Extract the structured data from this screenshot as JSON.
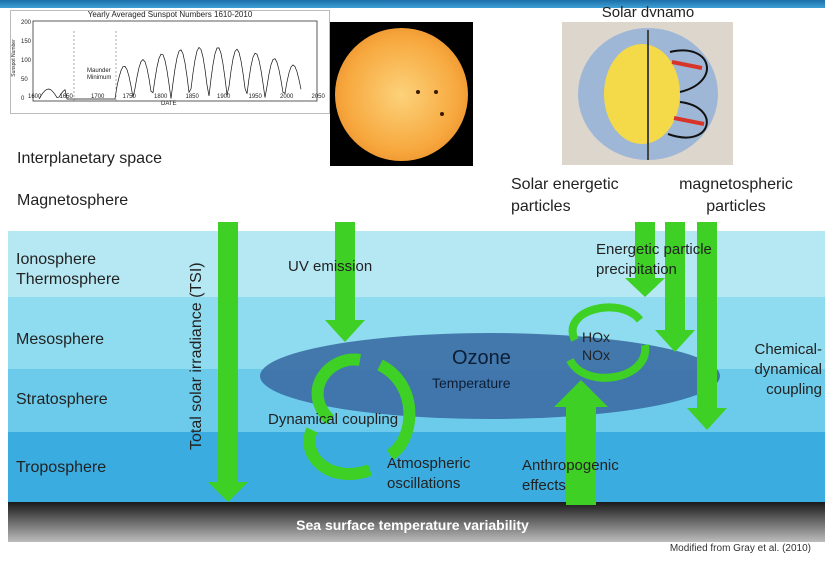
{
  "title_top": "Solar dynamo",
  "inset_chart": {
    "title": "Yearly Averaged Sunspot Numbers 1610-2010",
    "ylabel": "Sunspot Number",
    "xlabel": "DATE",
    "annotation": "Maunder Minimum",
    "x_ticks": [
      "1600",
      "1650",
      "1700",
      "1750",
      "1800",
      "1850",
      "1900",
      "1950",
      "2000",
      "2050"
    ],
    "y_ticks": [
      "0",
      "50",
      "100",
      "150",
      "200"
    ]
  },
  "space_labels": {
    "interplanetary": "Interplanetary space",
    "magnetosphere": "Magnetosphere",
    "solar_energetic": "Solar energetic particles",
    "magnetospheric": "magnetospheric particles"
  },
  "layers": [
    {
      "label": "Ionosphere Thermosphere",
      "color": "#b6e8f3"
    },
    {
      "label": "Mesosphere",
      "color": "#8fdcf0"
    },
    {
      "label": "Stratosphere",
      "color": "#6ccbeb"
    },
    {
      "label": "Troposphere",
      "color": "#3aace0"
    }
  ],
  "process_labels": {
    "tsi": "Total solar irradiance (TSI)",
    "uv": "UV emission",
    "energetic_precip": "Energetic particle precipitation",
    "hox": "HOx",
    "nox": "NOx",
    "ozone": "Ozone",
    "temperature": "Temperature",
    "chemical": "Chemical-dynamical coupling",
    "dynamical": "Dynamical coupling",
    "atmos_osc": "Atmospheric oscillations",
    "anthro": "Anthropogenic effects",
    "sst": "Sea surface temperature variability"
  },
  "credit": "Modified from Gray et al. (2010)",
  "colors": {
    "arrow_green": "#3ed024",
    "ozone_fill": "#3d6fa6",
    "sea": "#2a2a2a"
  }
}
